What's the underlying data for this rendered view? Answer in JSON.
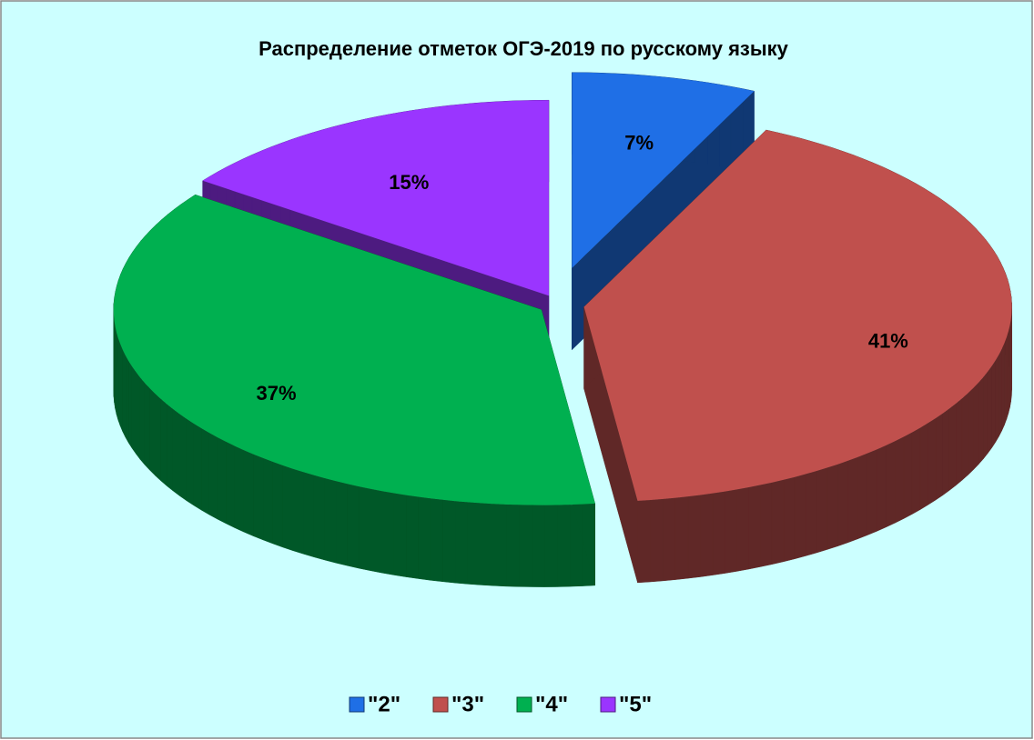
{
  "chart_data": {
    "type": "pie",
    "title": "Распределение отметок ОГЭ-2019 по русскому языку",
    "categories": [
      "\"2\"",
      "\"3\"",
      "\"4\"",
      "\"5\""
    ],
    "values": [
      7,
      41,
      37,
      15
    ],
    "value_labels": [
      "7%",
      "41%",
      "37%",
      "15%"
    ],
    "colors": [
      "#1f6fe6",
      "#c0504d",
      "#00b050",
      "#9a35ff"
    ],
    "legend": "bottom"
  }
}
